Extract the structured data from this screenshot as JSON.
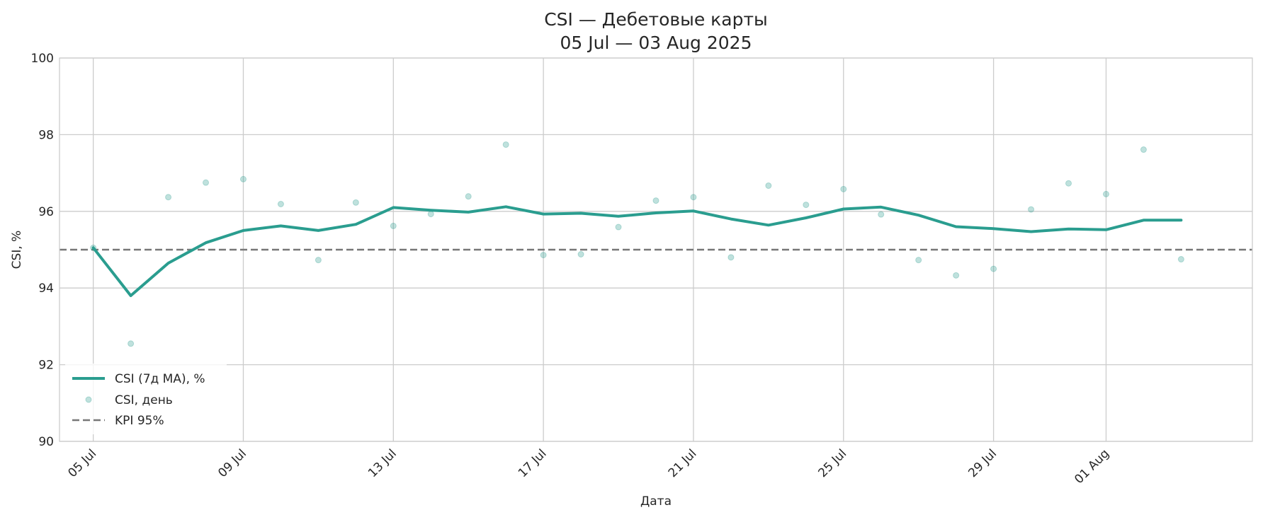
{
  "chart_data": {
    "type": "line",
    "title_line1": "CSI — Дебетовые карты",
    "title_line2": "05 Jul — 03 Aug 2025",
    "xlabel": "Дата",
    "ylabel": "CSI, %",
    "ylim": [
      90,
      100
    ],
    "yticks": [
      "90",
      "92",
      "94",
      "96",
      "98",
      "100"
    ],
    "x_start_date": "2025-07-05",
    "x_end_date": "2025-08-03",
    "xlim_days": [
      -0.9,
      30.9
    ],
    "x_ticks": [
      {
        "label": "05 Jul",
        "day": 0
      },
      {
        "label": "09 Jul",
        "day": 4
      },
      {
        "label": "13 Jul",
        "day": 8
      },
      {
        "label": "17 Jul",
        "day": 12
      },
      {
        "label": "21 Jul",
        "day": 16
      },
      {
        "label": "25 Jul",
        "day": 20
      },
      {
        "label": "29 Jul",
        "day": 24
      },
      {
        "label": "01 Aug",
        "day": 27
      }
    ],
    "grid": true,
    "legend_position": "lower-left",
    "series": [
      {
        "name": "CSI (7д MA), %",
        "kind": "line",
        "color": "#2a9d8f",
        "values": [
          95.05,
          93.8,
          94.65,
          95.18,
          95.5,
          95.62,
          95.5,
          95.66,
          96.1,
          96.03,
          95.98,
          96.12,
          95.93,
          95.95,
          95.87,
          95.96,
          96.01,
          95.8,
          95.64,
          95.83,
          96.06,
          96.11,
          95.9,
          95.6,
          95.55,
          95.47,
          95.54,
          95.52,
          95.77,
          95.77
        ]
      },
      {
        "name": "CSI, день",
        "kind": "scatter",
        "color": "#2a9d8f",
        "values": [
          95.05,
          92.55,
          96.37,
          96.75,
          96.84,
          96.19,
          94.73,
          96.23,
          95.62,
          95.93,
          96.39,
          97.74,
          94.86,
          94.88,
          95.59,
          96.28,
          96.37,
          94.8,
          96.67,
          96.17,
          96.58,
          95.92,
          94.73,
          94.33,
          94.5,
          96.05,
          96.73,
          96.45,
          97.61,
          94.75
        ]
      }
    ],
    "reference_line": {
      "name": "KPI 95%",
      "value": 95,
      "color": "#777777"
    }
  }
}
